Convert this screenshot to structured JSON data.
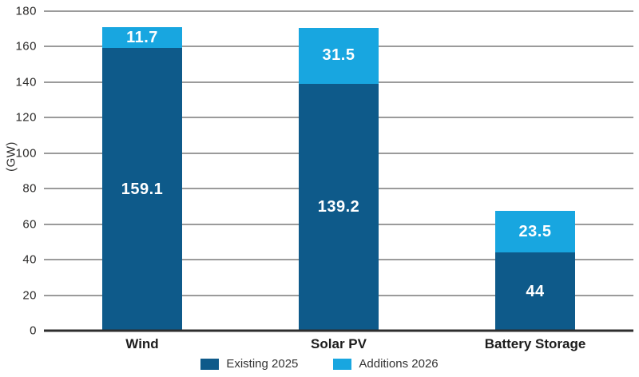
{
  "chart_data": {
    "type": "bar",
    "stacked": true,
    "title": "",
    "xlabel": "",
    "ylabel": "(GW)",
    "ylim": [
      0,
      180
    ],
    "yticks": [
      0,
      20,
      40,
      60,
      80,
      100,
      120,
      140,
      160,
      180
    ],
    "grid": true,
    "legend_position": "bottom",
    "categories": [
      "Wind",
      "Solar PV",
      "Battery Storage"
    ],
    "series": [
      {
        "name": "Existing 2025",
        "color": "#0E5A8A",
        "values": [
          159.1,
          139.2,
          44
        ],
        "labels": [
          "159.1",
          "139.2",
          "44"
        ]
      },
      {
        "name": "Additions 2026",
        "color": "#18A6E0",
        "values": [
          11.7,
          31.5,
          23.5
        ],
        "labels": [
          "11.7",
          "31.5",
          "23.5"
        ]
      }
    ],
    "totals": [
      170.8,
      170.7,
      67.5
    ]
  },
  "colors": {
    "existing_2025": "#0E5A8A",
    "additions_2026": "#18A6E0",
    "gridline": "#9B9B9B",
    "axis_line": "#2E2E2E",
    "tick_text": "#2B2A29",
    "value_text": "#FFFFFF"
  }
}
